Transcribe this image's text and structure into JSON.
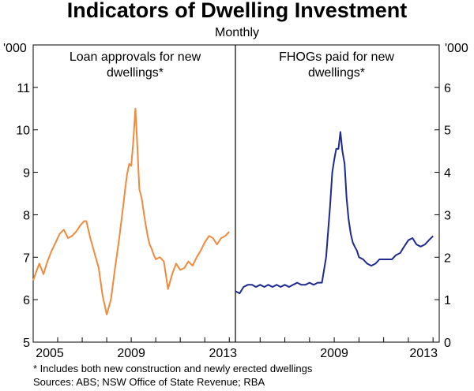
{
  "chart_data": {
    "type": "line",
    "title": "Indicators of Dwelling Investment",
    "subtitle": "Monthly",
    "x_ticks": [
      "2005",
      "2009",
      "2013"
    ],
    "x_ticks_right": [
      "2009",
      "2013"
    ],
    "left_axis": {
      "unit": "'000",
      "ticks": [
        "5",
        "6",
        "7",
        "8",
        "9",
        "10",
        "11"
      ],
      "ylim": [
        5,
        12
      ]
    },
    "right_axis": {
      "unit": "'000",
      "ticks": [
        "0",
        "1",
        "2",
        "3",
        "4",
        "5",
        "6"
      ],
      "ylim": [
        0,
        7
      ]
    },
    "panels": [
      {
        "title_line1": "Loan approvals for new",
        "title_line2": "dwellings*",
        "xlim": [
          2005.0,
          2013.25
        ],
        "color": "#F08A3C",
        "series": {
          "name": "Loan approvals for new dwellings",
          "x": [
            2005.0,
            2005.12,
            2005.25,
            2005.42,
            2005.58,
            2005.75,
            2005.92,
            2006.08,
            2006.25,
            2006.42,
            2006.58,
            2006.75,
            2006.92,
            2007.08,
            2007.17,
            2007.33,
            2007.5,
            2007.67,
            2007.83,
            2008.0,
            2008.17,
            2008.33,
            2008.5,
            2008.67,
            2008.75,
            2008.83,
            2008.92,
            2009.0,
            2009.08,
            2009.17,
            2009.25,
            2009.33,
            2009.42,
            2009.5,
            2009.58,
            2009.67,
            2009.75,
            2009.83,
            2009.92,
            2010.0,
            2010.17,
            2010.33,
            2010.5,
            2010.67,
            2010.83,
            2011.0,
            2011.17,
            2011.33,
            2011.5,
            2011.67,
            2011.83,
            2012.0,
            2012.17,
            2012.33,
            2012.5,
            2012.67,
            2012.83,
            2013.0
          ],
          "y": [
            6.45,
            6.65,
            6.85,
            6.6,
            6.9,
            7.15,
            7.35,
            7.55,
            7.65,
            7.45,
            7.5,
            7.6,
            7.75,
            7.85,
            7.85,
            7.45,
            7.1,
            6.75,
            6.1,
            5.65,
            6.0,
            6.7,
            7.4,
            8.2,
            8.6,
            8.95,
            9.2,
            9.15,
            9.7,
            10.5,
            9.6,
            8.6,
            8.4,
            8.1,
            7.8,
            7.5,
            7.3,
            7.2,
            7.05,
            6.95,
            7.0,
            6.9,
            6.25,
            6.6,
            6.85,
            6.7,
            6.75,
            6.9,
            6.8,
            7.0,
            7.15,
            7.35,
            7.5,
            7.45,
            7.3,
            7.45,
            7.5,
            7.6
          ]
        }
      },
      {
        "title_line1": "FHOGs paid for new",
        "title_line2": "dwellings*",
        "xlim": [
          2005.0,
          2013.25
        ],
        "color": "#1E2A8C",
        "series": {
          "name": "FHOGs paid for new dwellings",
          "x": [
            2005.0,
            2005.17,
            2005.33,
            2005.5,
            2005.67,
            2005.83,
            2006.0,
            2006.17,
            2006.33,
            2006.5,
            2006.67,
            2006.83,
            2007.0,
            2007.17,
            2007.33,
            2007.5,
            2007.67,
            2007.83,
            2008.0,
            2008.17,
            2008.33,
            2008.5,
            2008.67,
            2008.75,
            2008.83,
            2008.92,
            2009.0,
            2009.08,
            2009.17,
            2009.25,
            2009.33,
            2009.42,
            2009.5,
            2009.58,
            2009.67,
            2009.75,
            2009.83,
            2009.92,
            2010.0,
            2010.17,
            2010.33,
            2010.5,
            2010.67,
            2010.83,
            2011.0,
            2011.17,
            2011.33,
            2011.5,
            2011.67,
            2011.83,
            2012.0,
            2012.17,
            2012.33,
            2012.5,
            2012.67,
            2012.83,
            2013.0
          ],
          "y": [
            1.2,
            1.15,
            1.3,
            1.35,
            1.35,
            1.3,
            1.35,
            1.3,
            1.35,
            1.3,
            1.35,
            1.3,
            1.35,
            1.3,
            1.35,
            1.4,
            1.35,
            1.35,
            1.4,
            1.35,
            1.4,
            1.4,
            2.0,
            2.6,
            3.2,
            4.0,
            4.3,
            4.55,
            4.55,
            4.95,
            4.5,
            4.2,
            3.4,
            2.9,
            2.55,
            2.35,
            2.25,
            2.15,
            2.0,
            1.95,
            1.85,
            1.8,
            1.85,
            1.95,
            1.95,
            1.95,
            1.95,
            2.05,
            2.1,
            2.25,
            2.4,
            2.45,
            2.3,
            2.25,
            2.3,
            2.4,
            2.5
          ]
        }
      }
    ]
  },
  "footnotes": {
    "note": "*    Includes both new construction and newly erected dwellings",
    "sources": "Sources: ABS; NSW Office of State Revenue; RBA"
  }
}
